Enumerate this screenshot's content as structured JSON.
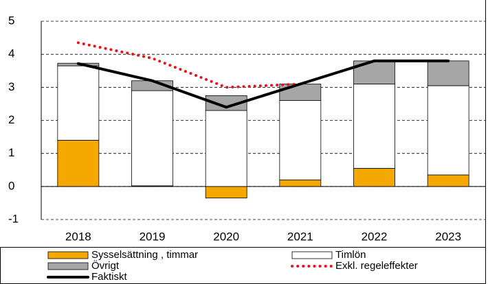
{
  "chart_data": {
    "type": "bar",
    "categories": [
      "2018",
      "2019",
      "2020",
      "2021",
      "2022",
      "2023"
    ],
    "series": [
      {
        "name": "Sysselsättning , timmar",
        "color": "#f5a800",
        "values": [
          1.4,
          0.02,
          -0.35,
          0.2,
          0.55,
          0.35
        ]
      },
      {
        "name": "Timlön",
        "color": "#ffffff",
        "values": [
          2.25,
          2.88,
          2.3,
          2.4,
          2.55,
          2.7
        ]
      },
      {
        "name": "Övrigt",
        "color": "#a6a6a6",
        "values": [
          0.08,
          0.3,
          0.45,
          0.5,
          0.7,
          0.75
        ]
      },
      {
        "name": "Exkl. regeleffekter",
        "type": "line",
        "style": "dotted",
        "color": "#e8141b",
        "values": [
          4.35,
          3.88,
          3.0,
          3.1,
          3.8,
          3.8
        ]
      },
      {
        "name": "Faktiskt",
        "type": "line",
        "style": "solid",
        "color": "#000000",
        "values": [
          3.72,
          3.2,
          2.4,
          3.1,
          3.8,
          3.8
        ]
      }
    ],
    "ylim": [
      -1,
      5
    ],
    "yticks": [
      -1,
      0,
      1,
      2,
      3,
      4,
      5
    ],
    "grid": true
  }
}
